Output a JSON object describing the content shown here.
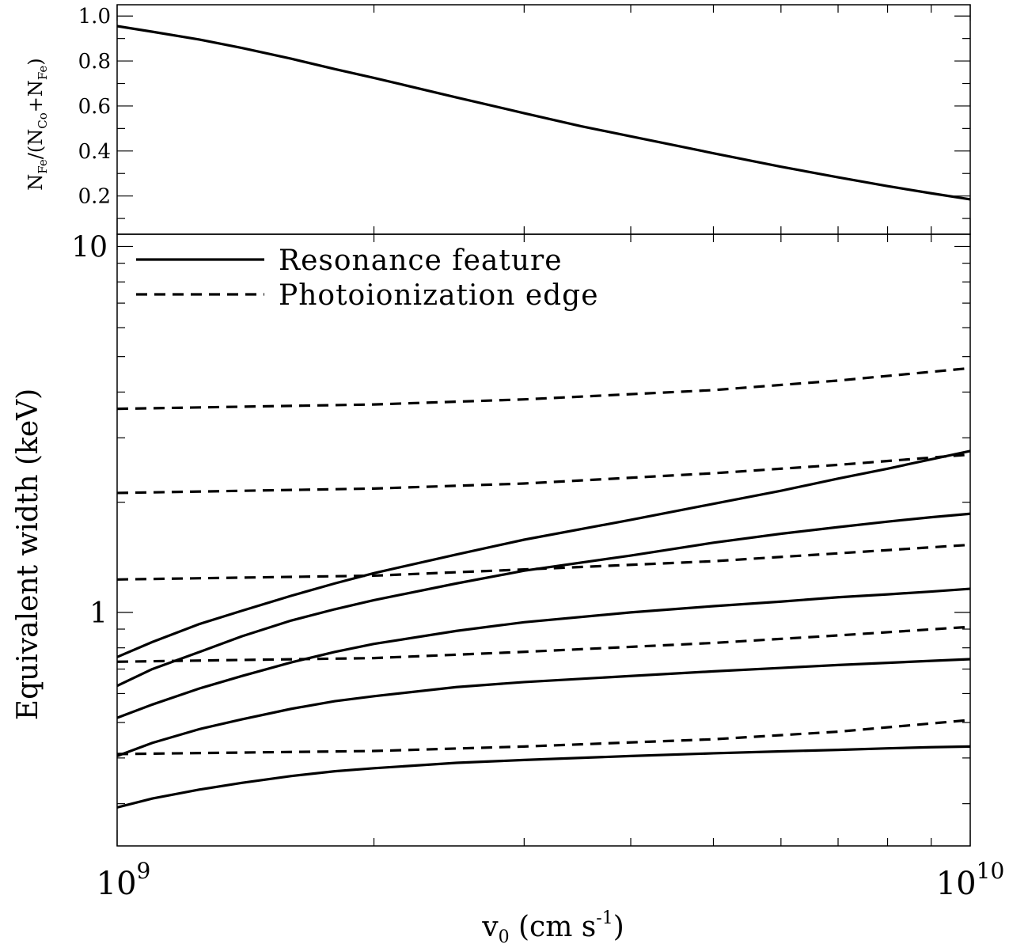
{
  "chart_data": [
    {
      "type": "line",
      "panel": "top",
      "title": "",
      "xlabel": "",
      "ylabel": "N_Fe/(N_Co+N_Fe)",
      "ylabel_parts": [
        "N",
        "Fe",
        "/(N",
        "Co",
        "+N",
        "Fe",
        ")"
      ],
      "xscale": "log",
      "xlim": [
        1000000000.0,
        10000000000.0
      ],
      "ylim": [
        0.03,
        1.05
      ],
      "yticks": [
        0.2,
        0.4,
        0.6,
        0.8,
        1.0
      ],
      "ytick_labels": [
        "0.2",
        "0.4",
        "0.6",
        "0.8",
        "1.0"
      ],
      "grid": false,
      "series": [
        {
          "style": "solid",
          "x": [
            1000000000.0,
            1100000000.0,
            1250000000.0,
            1400000000.0,
            1600000000.0,
            1800000000.0,
            2000000000.0,
            2500000000.0,
            3000000000.0,
            3500000000.0,
            4000000000.0,
            5000000000.0,
            6000000000.0,
            7000000000.0,
            8000000000.0,
            9000000000.0,
            10000000000.0
          ],
          "y": [
            0.955,
            0.93,
            0.895,
            0.858,
            0.81,
            0.764,
            0.725,
            0.638,
            0.568,
            0.51,
            0.465,
            0.39,
            0.33,
            0.283,
            0.244,
            0.212,
            0.185
          ]
        }
      ]
    },
    {
      "type": "line",
      "panel": "bottom",
      "title": "",
      "xlabel": "v_0 (cm s^-1)",
      "xlabel_parts": [
        "v",
        "0",
        " (cm s",
        "-1",
        ")"
      ],
      "ylabel": "Equivalent width (keV)",
      "xscale": "log",
      "yscale": "log",
      "xlim": [
        1000000000.0,
        10000000000.0
      ],
      "ylim": [
        0.23,
        10.8
      ],
      "xtick_labels": [
        {
          "value": 1000000000.0,
          "base": "10",
          "exp": "9"
        },
        {
          "value": 10000000000.0,
          "base": "10",
          "exp": "10"
        }
      ],
      "ytick_labels": [
        {
          "value": 1,
          "label": "1"
        },
        {
          "value": 10,
          "label": "10"
        }
      ],
      "grid": false,
      "legend": {
        "placement": "top-left",
        "entries": [
          {
            "label": "Resonance feature",
            "style": "solid"
          },
          {
            "label": "Photoionization edge",
            "style": "dashed"
          }
        ]
      },
      "series": [
        {
          "style": "dashed",
          "x": [
            1000000000.0,
            2000000000.0,
            3000000000.0,
            5000000000.0,
            7000000000.0,
            10000000000.0
          ],
          "y": [
            3.6,
            3.7,
            3.82,
            4.05,
            4.3,
            4.65
          ]
        },
        {
          "style": "dashed",
          "x": [
            1000000000.0,
            2000000000.0,
            3000000000.0,
            5000000000.0,
            7000000000.0,
            10000000000.0
          ],
          "y": [
            2.12,
            2.18,
            2.25,
            2.4,
            2.53,
            2.7
          ]
        },
        {
          "style": "dashed",
          "x": [
            1000000000.0,
            2000000000.0,
            3000000000.0,
            5000000000.0,
            7000000000.0,
            10000000000.0
          ],
          "y": [
            1.23,
            1.26,
            1.31,
            1.38,
            1.45,
            1.53
          ]
        },
        {
          "style": "dashed",
          "x": [
            1000000000.0,
            2000000000.0,
            3000000000.0,
            5000000000.0,
            7000000000.0,
            10000000000.0
          ],
          "y": [
            0.733,
            0.75,
            0.78,
            0.825,
            0.865,
            0.913
          ]
        },
        {
          "style": "dashed",
          "x": [
            1000000000.0,
            2000000000.0,
            3000000000.0,
            5000000000.0,
            7000000000.0,
            10000000000.0
          ],
          "y": [
            0.41,
            0.418,
            0.43,
            0.45,
            0.472,
            0.508
          ]
        },
        {
          "style": "solid",
          "x": [
            1000000000.0,
            1100000000.0,
            1250000000.0,
            1400000000.0,
            1600000000.0,
            1800000000.0,
            2000000000.0,
            2500000000.0,
            3000000000.0,
            4000000000.0,
            5000000000.0,
            6000000000.0,
            7000000000.0,
            8000000000.0,
            9000000000.0,
            10000000000.0
          ],
          "y": [
            0.755,
            0.83,
            0.93,
            1.01,
            1.11,
            1.2,
            1.28,
            1.44,
            1.58,
            1.79,
            1.98,
            2.15,
            2.32,
            2.47,
            2.62,
            2.76
          ]
        },
        {
          "style": "solid",
          "x": [
            1000000000.0,
            1100000000.0,
            1250000000.0,
            1400000000.0,
            1600000000.0,
            1800000000.0,
            2000000000.0,
            2500000000.0,
            3000000000.0,
            4000000000.0,
            5000000000.0,
            6000000000.0,
            7000000000.0,
            8000000000.0,
            9000000000.0,
            10000000000.0
          ],
          "y": [
            0.63,
            0.7,
            0.78,
            0.86,
            0.95,
            1.02,
            1.08,
            1.2,
            1.3,
            1.43,
            1.55,
            1.64,
            1.71,
            1.77,
            1.82,
            1.86
          ]
        },
        {
          "style": "solid",
          "x": [
            1000000000.0,
            1100000000.0,
            1250000000.0,
            1400000000.0,
            1600000000.0,
            1800000000.0,
            2000000000.0,
            2500000000.0,
            3000000000.0,
            4000000000.0,
            5000000000.0,
            6000000000.0,
            7000000000.0,
            8000000000.0,
            9000000000.0,
            10000000000.0
          ],
          "y": [
            0.515,
            0.56,
            0.62,
            0.67,
            0.73,
            0.78,
            0.82,
            0.89,
            0.94,
            1.0,
            1.04,
            1.07,
            1.1,
            1.12,
            1.14,
            1.16
          ]
        },
        {
          "style": "solid",
          "x": [
            1000000000.0,
            1100000000.0,
            1250000000.0,
            1400000000.0,
            1600000000.0,
            1800000000.0,
            2000000000.0,
            2500000000.0,
            3000000000.0,
            4000000000.0,
            5000000000.0,
            6000000000.0,
            7000000000.0,
            8000000000.0,
            9000000000.0,
            10000000000.0
          ],
          "y": [
            0.405,
            0.44,
            0.48,
            0.51,
            0.545,
            0.572,
            0.59,
            0.625,
            0.645,
            0.67,
            0.69,
            0.705,
            0.718,
            0.728,
            0.737,
            0.745
          ]
        },
        {
          "style": "solid",
          "x": [
            1000000000.0,
            1100000000.0,
            1250000000.0,
            1400000000.0,
            1600000000.0,
            1800000000.0,
            2000000000.0,
            2500000000.0,
            3000000000.0,
            4000000000.0,
            5000000000.0,
            6000000000.0,
            7000000000.0,
            8000000000.0,
            9000000000.0,
            10000000000.0
          ],
          "y": [
            0.293,
            0.31,
            0.328,
            0.342,
            0.357,
            0.368,
            0.375,
            0.388,
            0.395,
            0.405,
            0.412,
            0.417,
            0.421,
            0.425,
            0.428,
            0.43
          ]
        }
      ]
    }
  ]
}
